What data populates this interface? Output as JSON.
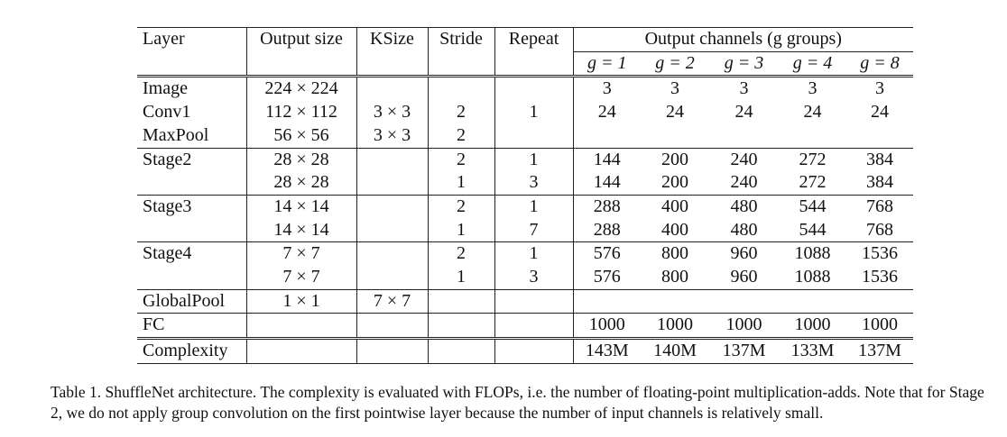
{
  "table": {
    "headers": {
      "layer": "Layer",
      "output_size": "Output size",
      "ksize": "KSize",
      "stride": "Stride",
      "repeat": "Repeat",
      "output_channels": "Output channels (g groups)",
      "groups": [
        "g = 1",
        "g = 2",
        "g = 3",
        "g = 4",
        "g = 8"
      ]
    },
    "rows": [
      {
        "layer": "Image",
        "out": "224 × 224",
        "k": "",
        "s": "",
        "r": "",
        "ch": [
          "3",
          "3",
          "3",
          "3",
          "3"
        ]
      },
      {
        "layer": "Conv1",
        "out": "112 × 112",
        "k": "3 × 3",
        "s": "2",
        "r": "1",
        "ch": [
          "24",
          "24",
          "24",
          "24",
          "24"
        ]
      },
      {
        "layer": "MaxPool",
        "out": "56 × 56",
        "k": "3 × 3",
        "s": "2",
        "r": "",
        "ch": [
          "",
          "",
          "",
          "",
          ""
        ]
      },
      {
        "layer": "Stage2",
        "out": "28 × 28",
        "k": "",
        "s": "2",
        "r": "1",
        "ch": [
          "144",
          "200",
          "240",
          "272",
          "384"
        ]
      },
      {
        "layer": "",
        "out": "28 × 28",
        "k": "",
        "s": "1",
        "r": "3",
        "ch": [
          "144",
          "200",
          "240",
          "272",
          "384"
        ]
      },
      {
        "layer": "Stage3",
        "out": "14 × 14",
        "k": "",
        "s": "2",
        "r": "1",
        "ch": [
          "288",
          "400",
          "480",
          "544",
          "768"
        ]
      },
      {
        "layer": "",
        "out": "14 × 14",
        "k": "",
        "s": "1",
        "r": "7",
        "ch": [
          "288",
          "400",
          "480",
          "544",
          "768"
        ]
      },
      {
        "layer": "Stage4",
        "out": "7 × 7",
        "k": "",
        "s": "2",
        "r": "1",
        "ch": [
          "576",
          "800",
          "960",
          "1088",
          "1536"
        ]
      },
      {
        "layer": "",
        "out": "7 × 7",
        "k": "",
        "s": "1",
        "r": "3",
        "ch": [
          "576",
          "800",
          "960",
          "1088",
          "1536"
        ]
      },
      {
        "layer": "GlobalPool",
        "out": "1 × 1",
        "k": "7 × 7",
        "s": "",
        "r": "",
        "ch": [
          "",
          "",
          "",
          "",
          ""
        ]
      },
      {
        "layer": "FC",
        "out": "",
        "k": "",
        "s": "",
        "r": "",
        "ch": [
          "1000",
          "1000",
          "1000",
          "1000",
          "1000"
        ]
      },
      {
        "layer": "Complexity",
        "out": "",
        "k": "",
        "s": "",
        "r": "",
        "ch": [
          "143M",
          "140M",
          "137M",
          "133M",
          "137M"
        ]
      }
    ]
  },
  "caption": "Table 1. ShuffleNet architecture. The complexity is evaluated with FLOPs, i.e. the number of floating-point multiplication-adds. Note that for Stage 2, we do not apply group convolution on the first pointwise layer because the number of input channels is relatively small."
}
